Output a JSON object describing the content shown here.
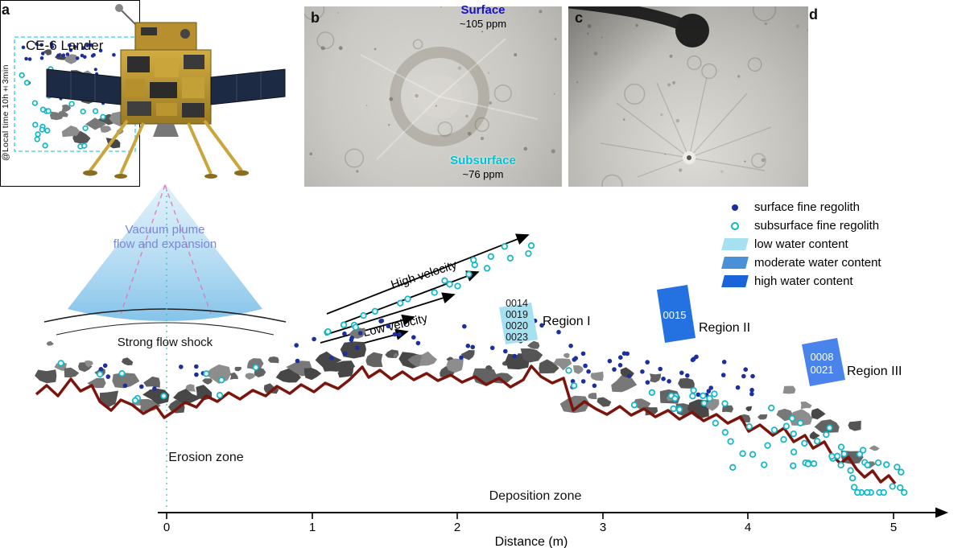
{
  "panels": {
    "a": {
      "label": "a",
      "lander_name": "CE-6 Lander",
      "plume_line1": "Vacuum plume",
      "plume_line2": "flow and expansion",
      "shock_label": "Strong flow shock"
    },
    "b": {
      "label": "b"
    },
    "c": {
      "label": "c"
    },
    "d": {
      "label": "d",
      "surface_label": "Surface",
      "surface_value": "~105 ppm",
      "local_time": "@Local time 10h±3min",
      "subsurface_label": "Subsurface",
      "subsurface_value": "~76 ppm"
    }
  },
  "legend": {
    "items": [
      {
        "symbol": "navy-dot",
        "label": "surface fine regolith"
      },
      {
        "symbol": "cyan-open-circle",
        "label": "subsurface fine regolith"
      },
      {
        "symbol": "light-blue-swatch",
        "label": "low water content"
      },
      {
        "symbol": "medium-blue-swatch",
        "label": "moderate water content"
      },
      {
        "symbol": "dark-blue-swatch",
        "label": "high water content"
      }
    ]
  },
  "flow_labels": {
    "high": "High velocity",
    "low": "Low velocity"
  },
  "regions": [
    {
      "name": "Region I",
      "samples": [
        "0014",
        "0019",
        "0020",
        "0023"
      ]
    },
    {
      "name": "Region II",
      "samples": [
        "0015"
      ]
    },
    {
      "name": "Region III",
      "samples": [
        "0008",
        "0021"
      ]
    }
  ],
  "zones": {
    "erosion": "Erosion zone",
    "deposition": "Deposition zone"
  },
  "axis": {
    "label": "Distance (m)",
    "ticks": [
      "0",
      "1",
      "2",
      "3",
      "4",
      "5"
    ]
  },
  "colors": {
    "surface_dot": "#1b2f9e",
    "subsurface_circle": "#14b4c4",
    "low_water": "#a6e1f2",
    "moderate_water": "#4a90d8",
    "high_water": "#1a63d8",
    "region2_fill": "#2472e2",
    "region3_fill": "#4a84ea",
    "profile_line": "#7a150d",
    "plume_text": "#7b86d8",
    "surface_text": "#1515c0",
    "subsurface_text": "#00c2d4"
  }
}
